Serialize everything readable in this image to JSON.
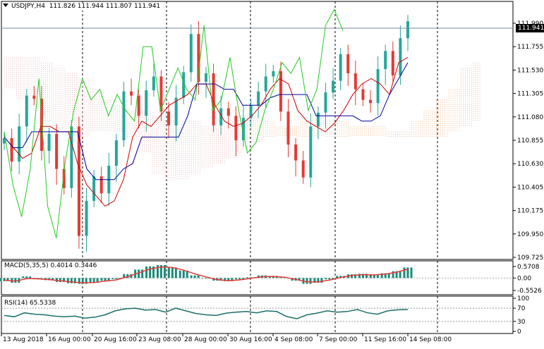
{
  "main": {
    "symbol_label": "USDJPY,H4",
    "ohlc_label": "111.826 111.944 111.807 111.941",
    "current_price_label": "111.941",
    "price_ticks": [
      "111.990",
      "111.755",
      "111.530",
      "111.305",
      "111.080",
      "110.855",
      "110.630",
      "110.405",
      "110.175",
      "109.950",
      "109.725"
    ]
  },
  "macd": {
    "label": "MACD(5,35,5) 0.4014 0.3446",
    "ticks": [
      "0.5708",
      "0.00",
      "-0.5526"
    ]
  },
  "rsi": {
    "label": "RSI(14) 65.5338",
    "ticks": [
      "100",
      "70",
      "30",
      "0"
    ]
  },
  "time_labels": [
    "13 Aug 2018",
    "16 Aug 00:00",
    "20 Aug 16:00",
    "23 Aug 08:00",
    "28 Aug 00:00",
    "30 Aug 16:00",
    "4 Sep 08:00",
    "7 Sep 00:00",
    "11 Sep 16:00",
    "14 Sep 08:00"
  ],
  "colors": {
    "bull": "#26A69A",
    "bear": "#E53935",
    "tenkan": "#CC0000",
    "kijun": "#000099",
    "chikou": "#22CC22",
    "cloud_a": "#E8B9B9",
    "cloud_b": "#D9A0A0",
    "grid": "#000000"
  },
  "chart_data": [
    {
      "type": "line",
      "title": "USDJPY,H4",
      "ylim": [
        109.725,
        112.1
      ],
      "x_labels": [
        "13 Aug 2018",
        "16 Aug 00:00",
        "20 Aug 16:00",
        "23 Aug 08:00",
        "28 Aug 00:00",
        "30 Aug 16:00",
        "4 Sep 08:00",
        "7 Sep 00:00",
        "11 Sep 16:00",
        "14 Sep 08:00"
      ],
      "series": [
        {
          "values": [
            110.84,
            110.62,
            110.95,
            111.24,
            111.21,
            110.72,
            110.88,
            110.55,
            110.37,
            110.95,
            109.92,
            110.25,
            110.48,
            110.32,
            110.58,
            110.82,
            111.28,
            111.24,
            111.05,
            111.29,
            111.42,
            111.09,
            110.96,
            111.22,
            111.46,
            111.82,
            111.37,
            111.45,
            110.96,
            111.12,
            111.05,
            110.82,
            111.03,
            111.15,
            111.28,
            111.42,
            111.47,
            111.09,
            110.78,
            110.63,
            110.47,
            110.95,
            111.08,
            111.27,
            111.38,
            111.63,
            111.45,
            111.3,
            111.2,
            111.17,
            111.49,
            111.66,
            111.43,
            111.78,
            111.94
          ]
        }
      ]
    },
    {
      "type": "bar",
      "title": "MACD(5,35,5)",
      "ylim": [
        -0.5526,
        0.5708
      ],
      "series": [
        {
          "name": "histogram",
          "values": [
            -0.12,
            -0.18,
            0.06,
            -0.04,
            -0.08,
            -0.15,
            -0.2,
            -0.22,
            -0.18,
            -0.1,
            -0.04,
            0.15,
            0.32,
            0.44,
            0.49,
            0.4,
            0.28,
            0.1,
            -0.02,
            -0.1,
            -0.12,
            -0.05,
            0.03,
            0.1,
            0.08,
            0.02,
            -0.1,
            -0.22,
            -0.18,
            -0.05,
            0.08,
            0.14,
            0.16,
            0.12,
            0.18,
            0.26,
            0.4
          ]
        },
        {
          "name": "signal",
          "values": [
            -0.08,
            -0.12,
            -0.02,
            -0.03,
            -0.06,
            -0.1,
            -0.15,
            -0.18,
            -0.17,
            -0.12,
            -0.07,
            0.05,
            0.2,
            0.34,
            0.42,
            0.4,
            0.3,
            0.16,
            0.04,
            -0.06,
            -0.1,
            -0.07,
            -0.01,
            0.05,
            0.06,
            0.03,
            -0.05,
            -0.15,
            -0.15,
            -0.08,
            0.02,
            0.1,
            0.13,
            0.12,
            0.15,
            0.22,
            0.34
          ]
        }
      ]
    },
    {
      "type": "line",
      "title": "RSI(14)",
      "ylim": [
        0,
        100
      ],
      "series": [
        {
          "values": [
            48,
            44,
            56,
            52,
            50,
            46,
            44,
            46,
            40,
            43,
            50,
            62,
            68,
            70,
            64,
            66,
            58,
            70,
            62,
            54,
            50,
            48,
            55,
            58,
            60,
            56,
            62,
            60,
            45,
            38,
            50,
            55,
            62,
            58,
            60,
            66,
            56,
            52,
            62,
            65,
            66
          ]
        }
      ]
    }
  ]
}
